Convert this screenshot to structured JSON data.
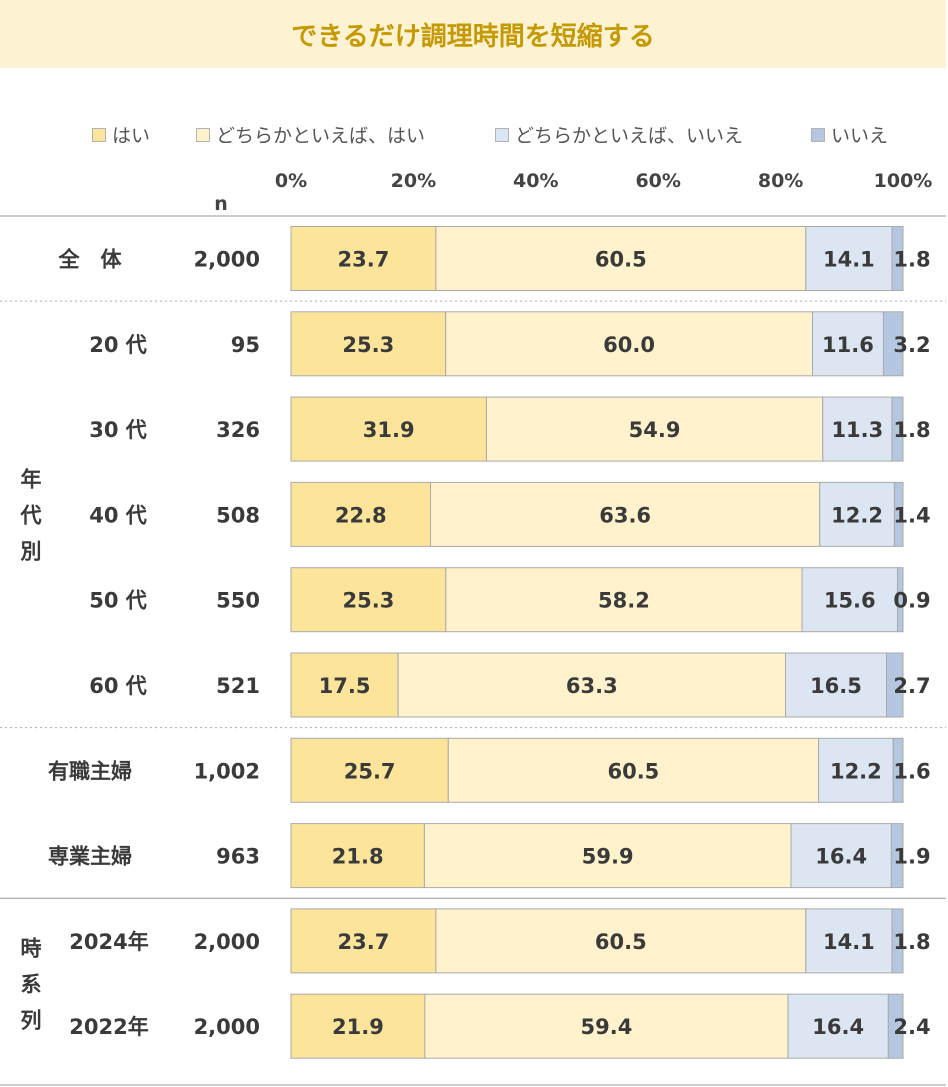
{
  "title": "できるだけ調理時間を短縮する",
  "chart_data": {
    "type": "bar",
    "stacked": true,
    "orientation": "horizontal",
    "n_header": "n",
    "x_ticks": [
      "0%",
      "20%",
      "40%",
      "60%",
      "80%",
      "100%"
    ],
    "xlim": [
      0,
      100
    ],
    "legend_position": "top",
    "series": [
      {
        "name": "はい",
        "color": "#fde49b"
      },
      {
        "name": "どちらかといえば、はい",
        "color": "#fff2cc"
      },
      {
        "name": "どちらかといえば、いいえ",
        "color": "#dce5f2"
      },
      {
        "name": "いいえ",
        "color": "#b4c6e0"
      }
    ],
    "groups": [
      {
        "label": "",
        "rows": [
          {
            "label": "全　体",
            "n": "2,000",
            "values": [
              23.7,
              60.5,
              14.1,
              1.8
            ]
          }
        ]
      },
      {
        "label": "年代別",
        "rows": [
          {
            "label": "20 代",
            "n": "95",
            "values": [
              25.3,
              60.0,
              11.6,
              3.2
            ]
          },
          {
            "label": "30 代",
            "n": "326",
            "values": [
              31.9,
              54.9,
              11.3,
              1.8
            ]
          },
          {
            "label": "40 代",
            "n": "508",
            "values": [
              22.8,
              63.6,
              12.2,
              1.4
            ]
          },
          {
            "label": "50 代",
            "n": "550",
            "values": [
              25.3,
              58.2,
              15.6,
              0.9
            ]
          },
          {
            "label": "60 代",
            "n": "521",
            "values": [
              17.5,
              63.3,
              16.5,
              2.7
            ]
          }
        ]
      },
      {
        "label": "",
        "rows": [
          {
            "label": "有職主婦",
            "n": "1,002",
            "values": [
              25.7,
              60.5,
              12.2,
              1.6
            ]
          },
          {
            "label": "専業主婦",
            "n": "963",
            "values": [
              21.8,
              59.9,
              16.4,
              1.9
            ]
          }
        ]
      },
      {
        "label": "時系列",
        "rows": [
          {
            "label": "2024年",
            "n": "2,000",
            "values": [
              23.7,
              60.5,
              14.1,
              1.8
            ]
          },
          {
            "label": "2022年",
            "n": "2,000",
            "values": [
              21.9,
              59.4,
              16.4,
              2.4
            ]
          }
        ]
      }
    ]
  }
}
